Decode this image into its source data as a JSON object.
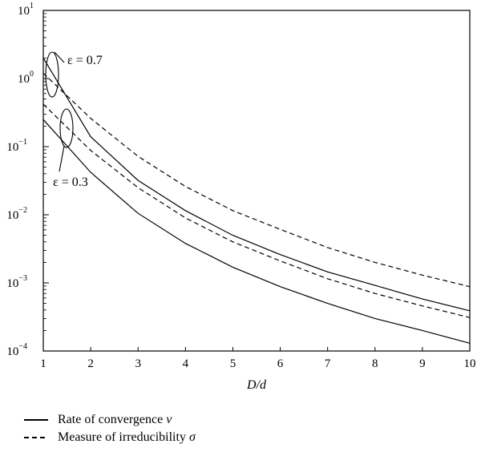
{
  "chart_data": {
    "type": "line",
    "xlabel": "D/d",
    "x_ticks": [
      "1",
      "2",
      "3",
      "4",
      "5",
      "6",
      "7",
      "8",
      "9",
      "10"
    ],
    "y_ticks": [
      {
        "base": "10",
        "exp": "−4"
      },
      {
        "base": "10",
        "exp": "−3"
      },
      {
        "base": "10",
        "exp": "−2"
      },
      {
        "base": "10",
        "exp": "−1"
      },
      {
        "base": "10",
        "exp": "0"
      },
      {
        "base": "10",
        "exp": "1"
      }
    ],
    "xlim": [
      1,
      10
    ],
    "ylim": [
      0.0001,
      10
    ],
    "yscale": "log",
    "grid": false,
    "legend_position": "bottom",
    "annotations": [
      "ε = 0.7",
      "ε = 0.3"
    ],
    "series": [
      {
        "name": "Rate of convergence ν",
        "group": "ε = 0.7",
        "style": "solid",
        "x": [
          1,
          2,
          3,
          4,
          5,
          6,
          7,
          8,
          9,
          10
        ],
        "y": [
          2.0,
          0.14,
          0.032,
          0.0115,
          0.005,
          0.0026,
          0.00145,
          0.00092,
          0.00058,
          0.00039
        ]
      },
      {
        "name": "Measure of irreducibility σ",
        "group": "ε = 0.7",
        "style": "dashed",
        "x": [
          1,
          2,
          3,
          4,
          5,
          6,
          7,
          8,
          9,
          10
        ],
        "y": [
          1.2,
          0.26,
          0.072,
          0.026,
          0.0115,
          0.0061,
          0.0033,
          0.002,
          0.0013,
          0.00088
        ]
      },
      {
        "name": "Rate of convergence ν",
        "group": "ε = 0.3",
        "style": "solid",
        "x": [
          1,
          2,
          3,
          4,
          5,
          6,
          7,
          8,
          9,
          10
        ],
        "y": [
          0.25,
          0.042,
          0.0105,
          0.0038,
          0.0017,
          0.00088,
          0.0005,
          0.0003,
          0.0002,
          0.00013
        ]
      },
      {
        "name": "Measure of irreducibility σ",
        "group": "ε = 0.3",
        "style": "dashed",
        "x": [
          1,
          2,
          3,
          4,
          5,
          6,
          7,
          8,
          9,
          10
        ],
        "y": [
          0.42,
          0.088,
          0.025,
          0.009,
          0.004,
          0.0021,
          0.00115,
          0.0007,
          0.00046,
          0.00031
        ]
      }
    ]
  },
  "legend": {
    "solid_label": "Rate of convergence",
    "solid_symbol": "ν",
    "dashed_label": "Measure of irreducibility",
    "dashed_symbol": "σ"
  }
}
